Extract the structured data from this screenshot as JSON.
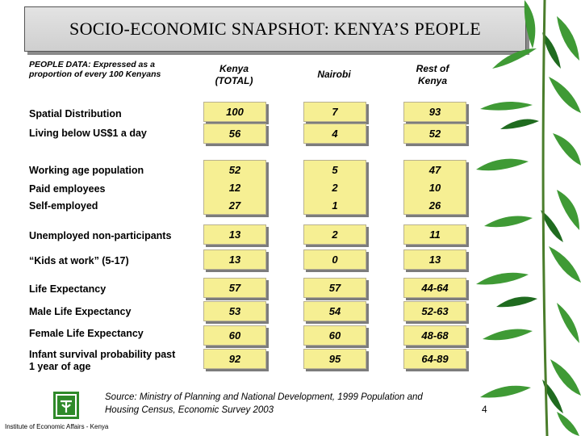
{
  "title": "SOCIO-ECONOMIC SNAPSHOT: KENYA’S PEOPLE",
  "people_data_label": "PEOPLE DATA:  Expressed as a proportion of every 100 Kenyans",
  "columns": {
    "kenya_total": [
      "Kenya",
      "(TOTAL)"
    ],
    "nairobi": "Nairobi",
    "rest_of_kenya": [
      "Rest of",
      "Kenya"
    ]
  },
  "rows": {
    "spatial": {
      "label": "Spatial Distribution",
      "kenya": "100",
      "nairobi": "7",
      "rest": "93"
    },
    "below": {
      "label": "Living below US$1 a day",
      "kenya": "56",
      "nairobi": "4",
      "rest": "52"
    },
    "working": {
      "label": "Working age population",
      "kenya": "52",
      "nairobi": "5",
      "rest": "47"
    },
    "paid": {
      "label": "Paid employees",
      "kenya": "12",
      "nairobi": "2",
      "rest": "10"
    },
    "self": {
      "label": "Self-employed",
      "kenya": "27",
      "nairobi": "1",
      "rest": "26"
    },
    "unemployed": {
      "label": "Unemployed non-participants",
      "kenya": "13",
      "nairobi": "2",
      "rest": "11"
    },
    "kids": {
      "label": "“Kids at work” (5-17)",
      "kenya": "13",
      "nairobi": "0",
      "rest": "13"
    },
    "life": {
      "label": "Life Expectancy",
      "kenya": "57",
      "nairobi": "57",
      "rest": "44-64"
    },
    "male": {
      "label": "Male Life Expectancy",
      "kenya": "53",
      "nairobi": "54",
      "rest": "52-63"
    },
    "female": {
      "label": "Female Life Expectancy",
      "kenya": "60",
      "nairobi": "60",
      "rest": "48-68"
    },
    "infant": {
      "label": [
        "Infant survival probability past",
        "1 year of age"
      ],
      "kenya": "92",
      "nairobi": "95",
      "rest": "64-89"
    }
  },
  "source": [
    "Source: Ministry of Planning and National Development, 1999 Population and",
    "Housing Census, Economic Survey 2003"
  ],
  "page_number": "4",
  "institute": "Institute of Economic Affairs   - Kenya",
  "colors": {
    "cell_fill": "#f6ef93",
    "cell_shadow": "#7c7c7c",
    "title_bg": "#d8d8d8",
    "bamboo": "#2f8a2a"
  }
}
